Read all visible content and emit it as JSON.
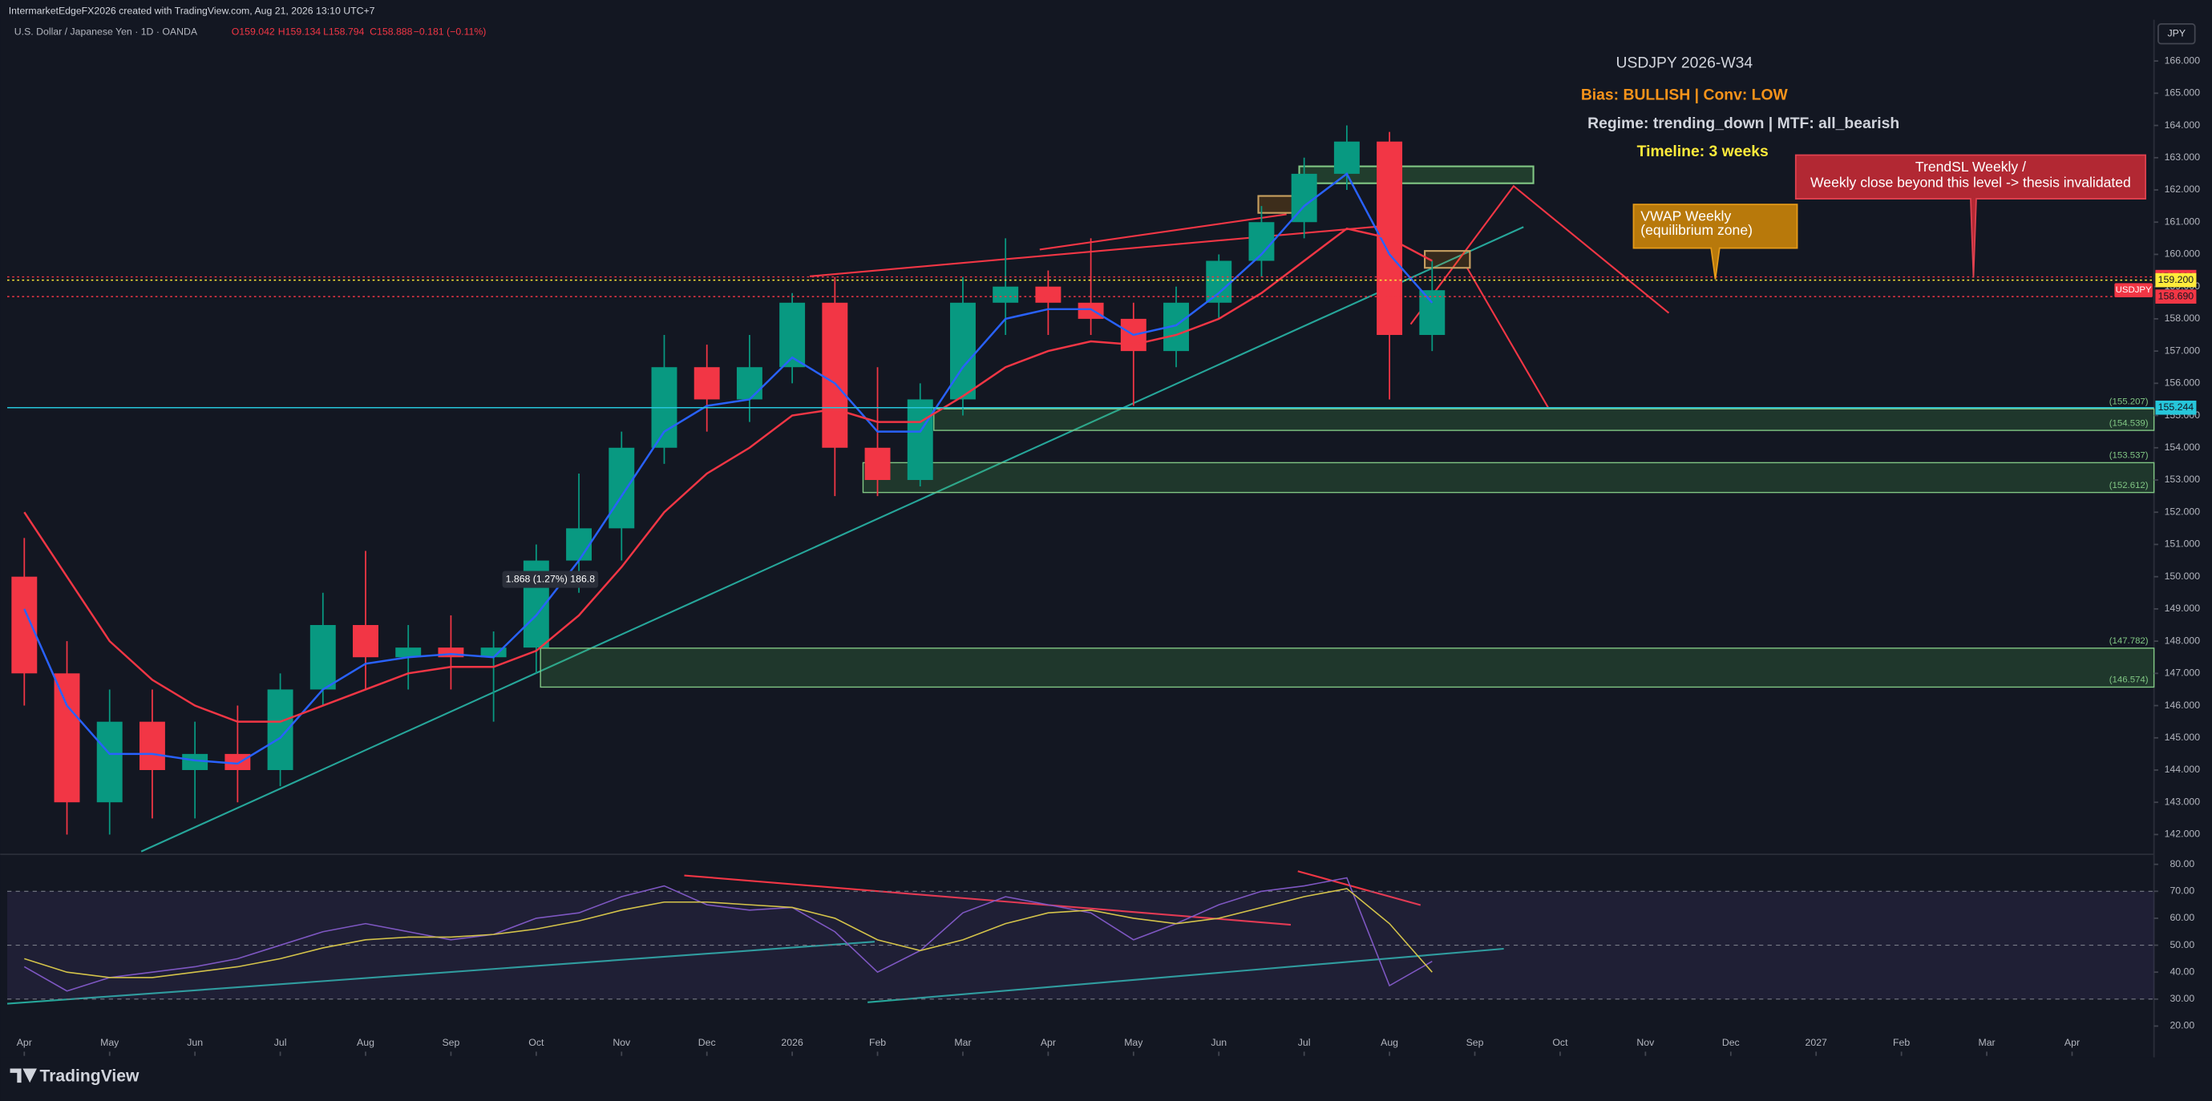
{
  "header": {
    "credit": "IntermarketEdgeFX2026 created with TradingView.com, Aug 21, 2026 13:10 UTC+7",
    "title": "U.S. Dollar / Japanese Yen · 1D · OANDA",
    "ohlc": [
      "O159.042",
      "H159.134",
      "L158.794",
      "C158.888",
      "−0.181 (−0.11%)"
    ],
    "currency": "JPY",
    "logo": "TradingView"
  },
  "chart_data": [
    {
      "type": "candlestick",
      "x": [
        0,
        0.5,
        1,
        1.5,
        2,
        2.5,
        3,
        3.5,
        4,
        4.5,
        5,
        5.5,
        6,
        6.5,
        7,
        7.5,
        8,
        8.5,
        9,
        9.5,
        10,
        10.5,
        11,
        11.5,
        12,
        12.5,
        13,
        13.5,
        14,
        14.5,
        15,
        15.5,
        16,
        16.5
      ],
      "open": [
        150,
        147,
        143,
        145.5,
        144,
        144.5,
        144,
        146.5,
        148.5,
        147.5,
        147.8,
        147.5,
        147.8,
        150.5,
        151.5,
        154,
        156.5,
        155.5,
        156.5,
        158.5,
        154,
        153,
        155.5,
        158.5,
        159,
        158.5,
        158,
        157,
        158.5,
        159.8,
        161,
        162.5,
        163.5,
        157.5
      ],
      "high": [
        151.2,
        148,
        146.5,
        146.5,
        145.5,
        146,
        147,
        149.5,
        150.8,
        148.5,
        148.8,
        148.3,
        151,
        153.2,
        154.5,
        157.5,
        157.2,
        157.5,
        158.8,
        159.3,
        156.5,
        156,
        159.3,
        160.5,
        159.5,
        160.5,
        158.5,
        159,
        160,
        161.5,
        163,
        164,
        163.8,
        159.8
      ],
      "low": [
        146,
        142,
        142,
        142.5,
        142.5,
        143,
        143.5,
        146,
        146.5,
        146.5,
        146.5,
        145.5,
        147,
        149.5,
        150.5,
        153.5,
        154.5,
        154.8,
        156,
        152.5,
        152.5,
        152.8,
        155,
        157.5,
        157.5,
        157.5,
        155.3,
        156.5,
        158,
        159.3,
        160.5,
        162,
        155.5,
        157
      ],
      "close": [
        147,
        143,
        145.5,
        144,
        144.5,
        144,
        146.5,
        148.5,
        147.5,
        147.8,
        147.5,
        147.8,
        150.5,
        151.5,
        154,
        156.5,
        155.5,
        156.5,
        158.5,
        154,
        153,
        155.5,
        158.5,
        159,
        158.5,
        158,
        157,
        158.5,
        159.8,
        161,
        162.5,
        163.5,
        157.5,
        158.888
      ],
      "up_color": "#089981",
      "down_color": "#f23645",
      "series": [
        {
          "color": "#2962ff",
          "values": [
            149,
            146,
            144.5,
            144.5,
            144.3,
            144.2,
            145,
            146.5,
            147.3,
            147.5,
            147.6,
            147.5,
            148.8,
            150.5,
            152.5,
            154.5,
            155.3,
            155.5,
            156.8,
            156,
            154.5,
            154.5,
            156.5,
            158,
            158.3,
            158.3,
            157.5,
            157.8,
            158.8,
            160,
            161.5,
            162.5,
            160,
            158.5
          ]
        },
        {
          "color": "#f23645",
          "values": [
            152,
            150,
            148,
            146.8,
            146,
            145.5,
            145.5,
            146,
            146.5,
            147,
            147.2,
            147.2,
            147.7,
            148.8,
            150.3,
            152,
            153.2,
            154,
            155,
            155.2,
            154.8,
            154.8,
            155.6,
            156.5,
            157,
            157.3,
            157.2,
            157.5,
            158,
            158.8,
            159.8,
            160.8,
            160.5,
            159.8
          ]
        }
      ],
      "xlim": [
        -0.2,
        24.96
      ],
      "xticks": [
        {
          "value": 0,
          "label": "Apr"
        },
        {
          "value": 1,
          "label": "May"
        },
        {
          "value": 2,
          "label": "Jun"
        },
        {
          "value": 3,
          "label": "Jul"
        },
        {
          "value": 4,
          "label": "Aug"
        },
        {
          "value": 5,
          "label": "Sep"
        },
        {
          "value": 6,
          "label": "Oct"
        },
        {
          "value": 7,
          "label": "Nov"
        },
        {
          "value": 8,
          "label": "Dec"
        },
        {
          "value": 9,
          "label": "2026"
        },
        {
          "value": 10,
          "label": "Feb"
        },
        {
          "value": 11,
          "label": "Mar"
        },
        {
          "value": 12,
          "label": "Apr"
        },
        {
          "value": 13,
          "label": "May"
        },
        {
          "value": 14,
          "label": "Jun"
        },
        {
          "value": 15,
          "label": "Jul"
        },
        {
          "value": 16,
          "label": "Aug"
        },
        {
          "value": 17,
          "label": "Sep"
        },
        {
          "value": 18,
          "label": "Oct"
        },
        {
          "value": 19,
          "label": "Nov"
        },
        {
          "value": 20,
          "label": "Dec"
        },
        {
          "value": 21,
          "label": "2027"
        },
        {
          "value": 22,
          "label": "Feb"
        },
        {
          "value": 23,
          "label": "Mar"
        },
        {
          "value": 24,
          "label": "Apr"
        }
      ],
      "ylim": [
        141.43,
        167.28
      ],
      "yticks": [
        {
          "value": 142,
          "label": "142.000"
        },
        {
          "value": 143,
          "label": "143.000"
        },
        {
          "value": 144,
          "label": "144.000"
        },
        {
          "value": 145,
          "label": "145.000"
        },
        {
          "value": 146,
          "label": "146.000"
        },
        {
          "value": 147,
          "label": "147.000"
        },
        {
          "value": 148,
          "label": "148.000"
        },
        {
          "value": 149,
          "label": "149.000"
        },
        {
          "value": 150,
          "label": "150.000"
        },
        {
          "value": 151,
          "label": "151.000"
        },
        {
          "value": 152,
          "label": "152.000"
        },
        {
          "value": 153,
          "label": "153.000"
        },
        {
          "value": 154,
          "label": "154.000"
        },
        {
          "value": 155,
          "label": "155.000"
        },
        {
          "value": 156,
          "label": "156.000"
        },
        {
          "value": 157,
          "label": "157.000"
        },
        {
          "value": 158,
          "label": "158.000"
        },
        {
          "value": 159,
          "label": "159.000"
        },
        {
          "value": 160,
          "label": "160.000"
        },
        {
          "value": 161,
          "label": "161.000"
        },
        {
          "value": 162,
          "label": "162.000"
        },
        {
          "value": 163,
          "label": "163.000"
        },
        {
          "value": 164,
          "label": "164.000"
        },
        {
          "value": 165,
          "label": "165.000"
        },
        {
          "value": 166,
          "label": "166.000"
        }
      ],
      "grid": false,
      "levels": [
        {
          "value": 159.3,
          "label": "159.300",
          "color": "#f23645",
          "dash": true
        },
        {
          "value": 159.2,
          "label": "159.200",
          "color": "#ffeb3b",
          "dash": true
        },
        {
          "value": 158.69,
          "label": "158.690",
          "color": "#f23645",
          "dash": true
        },
        {
          "value": 155.244,
          "label": "155.244",
          "color": "#26c6da",
          "dash": false
        }
      ],
      "last_tag": {
        "name": "USDJPY",
        "value": 158.888,
        "color": "#f23645"
      },
      "zones": [
        {
          "x0": 10.66,
          "top": 155.207,
          "bottom": 154.539,
          "value_labels": [
            "(155.207)",
            "(154.539)"
          ]
        },
        {
          "x0": 9.83,
          "top": 153.537,
          "bottom": 152.612,
          "value_labels": [
            "(153.537)",
            "(152.612)"
          ]
        },
        {
          "x0": 6.05,
          "top": 147.782,
          "bottom": 146.574,
          "value_labels": [
            "(147.782)",
            "(146.574)"
          ]
        }
      ],
      "annotations": [
        "USDJPY 2026-W34",
        "Bias: BULLISH | Conv: LOW",
        "Regime: trending_down | MTF: all_bearish",
        "Timeline: 3 weeks"
      ],
      "callouts": [
        [
          "VWAP Weekly",
          "(equilibrium zone)"
        ],
        [
          "TrendSL Weekly /",
          "Weekly close beyond this level -> thesis invalidated"
        ]
      ],
      "measure": "1.868 (1.27%) 186.8"
    },
    {
      "type": "line",
      "series": [
        {
          "color": "#7e57c2",
          "values": [
            42,
            33,
            38,
            40,
            42,
            45,
            50,
            55,
            58,
            55,
            52,
            54,
            60,
            62,
            68,
            72,
            65,
            63,
            64,
            55,
            40,
            48,
            62,
            68,
            65,
            62,
            52,
            58,
            65,
            70,
            72,
            75,
            35,
            44
          ]
        },
        {
          "color": "#d4c34a",
          "values": [
            45,
            40,
            38,
            38,
            40,
            42,
            45,
            49,
            52,
            53,
            53,
            54,
            56,
            59,
            63,
            66,
            66,
            65,
            64,
            60,
            52,
            48,
            52,
            58,
            62,
            63,
            60,
            58,
            60,
            64,
            68,
            71,
            58,
            40
          ]
        }
      ],
      "ylim": [
        10.5,
        83.2
      ],
      "yticks": [
        {
          "value": 20,
          "label": "20.00"
        },
        {
          "value": 30,
          "label": "30.00"
        },
        {
          "value": 40,
          "label": "40.00"
        },
        {
          "value": 50,
          "label": "50.00"
        },
        {
          "value": 60,
          "label": "60.00"
        },
        {
          "value": 70,
          "label": "70.00"
        },
        {
          "value": 80,
          "label": "80.00"
        }
      ],
      "levels": [
        70,
        50,
        30
      ]
    }
  ]
}
